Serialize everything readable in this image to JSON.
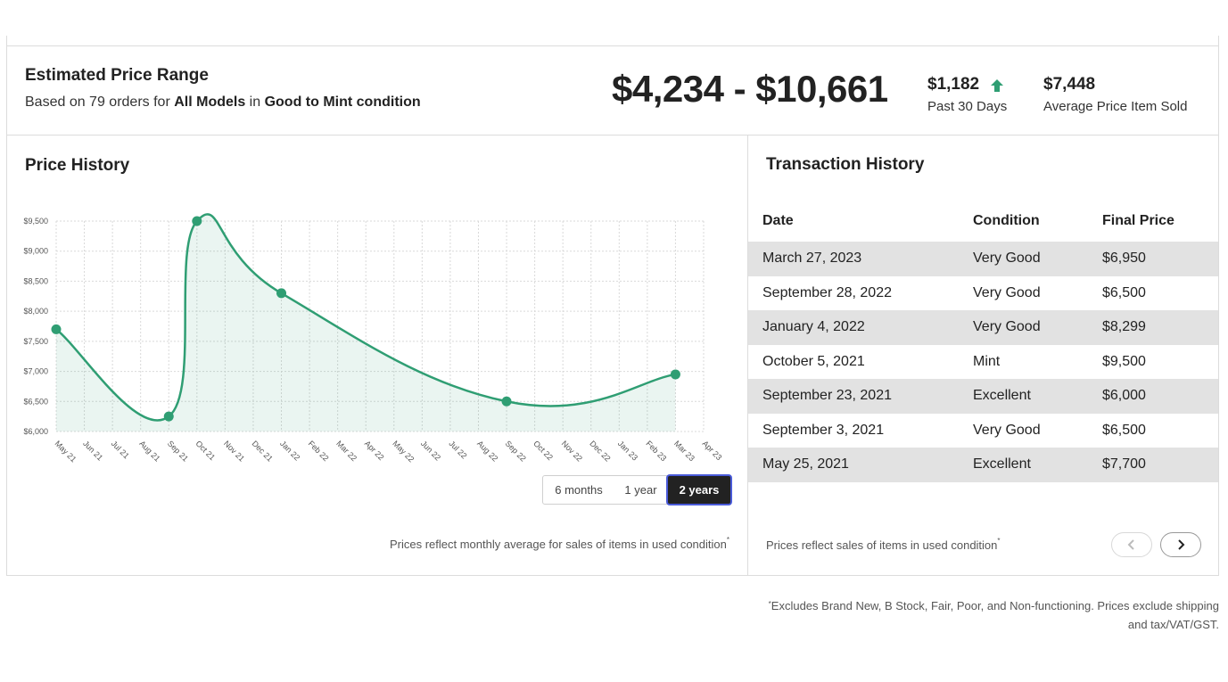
{
  "summary": {
    "title": "Estimated Price Range",
    "sub_prefix": "Based on 79 orders for ",
    "sub_models": "All Models",
    "sub_in": " in ",
    "sub_condition": "Good to Mint condition",
    "range": "$4,234 - $10,661",
    "stat1_value": "$1,182",
    "stat1_label": "Past 30 Days",
    "stat2_value": "$7,448",
    "stat2_label": "Average Price Item Sold",
    "accent": "#2f9e73"
  },
  "price_history": {
    "title": "Price History",
    "toggle": [
      "6 months",
      "1 year",
      "2 years"
    ],
    "active_toggle": "2 years",
    "note": "Prices reflect monthly average for sales of items in used condition",
    "note_mark": "*"
  },
  "chart_data": {
    "type": "line",
    "x": [
      "May 21",
      "Sep 21",
      "Oct 21",
      "Jan 22",
      "Sep 22",
      "Mar 23"
    ],
    "values": [
      7700,
      6250,
      9500,
      8300,
      6500,
      6950
    ],
    "categories": [
      "May 21",
      "Jun 21",
      "Jul 21",
      "Aug 21",
      "Sep 21",
      "Oct 21",
      "Nov 21",
      "Dec 21",
      "Jan 22",
      "Feb 22",
      "Mar 22",
      "Apr 22",
      "May 22",
      "Jun 22",
      "Jul 22",
      "Aug 22",
      "Sep 22",
      "Oct 22",
      "Nov 22",
      "Dec 22",
      "Jan 23",
      "Feb 23",
      "Mar 23",
      "Apr 23"
    ],
    "y_ticks": [
      "$6,000",
      "$6,500",
      "$7,000",
      "$7,500",
      "$8,000",
      "$8,500",
      "$9,000",
      "$9,500"
    ],
    "ylim": [
      6000,
      9500
    ],
    "grid": true,
    "area_fill": true,
    "color": "#2f9e73"
  },
  "transactions": {
    "title": "Transaction History",
    "headers": [
      "Date",
      "Condition",
      "Final Price"
    ],
    "rows": [
      {
        "date": "March 27, 2023",
        "condition": "Very Good",
        "price": "$6,950"
      },
      {
        "date": "September 28, 2022",
        "condition": "Very Good",
        "price": "$6,500"
      },
      {
        "date": "January 4, 2022",
        "condition": "Very Good",
        "price": "$8,299"
      },
      {
        "date": "October 5, 2021",
        "condition": "Mint",
        "price": "$9,500"
      },
      {
        "date": "September 23, 2021",
        "condition": "Excellent",
        "price": "$6,000"
      },
      {
        "date": "September 3, 2021",
        "condition": "Very Good",
        "price": "$6,500"
      },
      {
        "date": "May 25, 2021",
        "condition": "Excellent",
        "price": "$7,700"
      }
    ],
    "note": "Prices reflect sales of items in used condition",
    "note_mark": "*",
    "prev_icon": "chevron-left-icon",
    "next_icon": "chevron-right-icon"
  },
  "footnote": {
    "mark": "*",
    "line1": "Excludes Brand New, B Stock, Fair, Poor, and Non-functioning. Prices exclude shipping",
    "line2": "and tax/VAT/GST."
  }
}
